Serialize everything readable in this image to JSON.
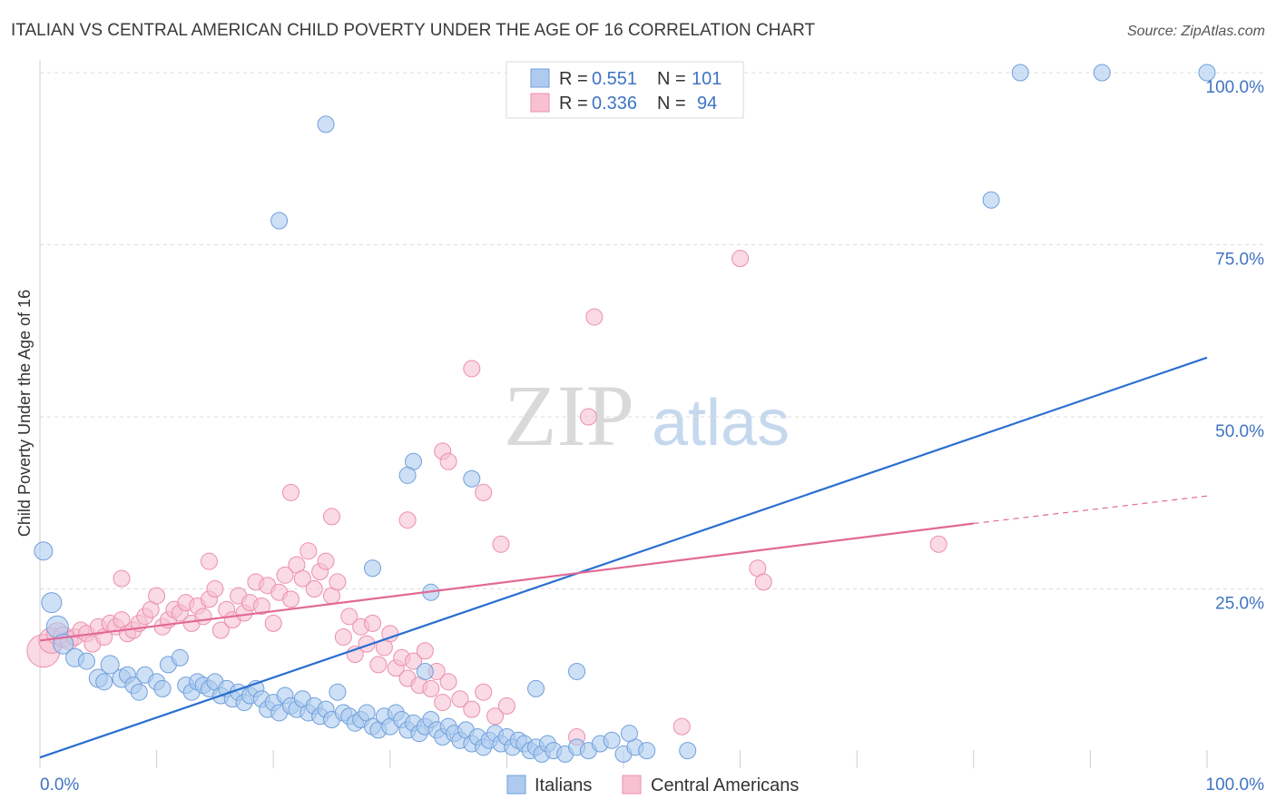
{
  "title": "ITALIAN VS CENTRAL AMERICAN CHILD POVERTY UNDER THE AGE OF 16 CORRELATION CHART",
  "source": "Source: ZipAtlas.com",
  "watermark": {
    "zip": "ZIP",
    "atlas": "atlas"
  },
  "colors": {
    "blue_fill": "#aecbef",
    "blue_stroke": "#6f9fdc",
    "blue_line": "#2a6fd1",
    "pink_fill": "#f7c1d2",
    "pink_stroke": "#ec8fab",
    "pink_line": "#e26996",
    "grid": "#dddddd",
    "axis": "#cccccc"
  },
  "legend": {
    "rows": [
      {
        "r_label": "R =",
        "r_value": "0.551",
        "n_label": "N =",
        "n_value": "101",
        "series": "blue"
      },
      {
        "r_label": "R =",
        "r_value": "0.336",
        "n_label": "N =",
        "n_value": "94",
        "series": "pink"
      }
    ]
  },
  "bottom_legend": [
    {
      "label": "Italians",
      "series": "blue"
    },
    {
      "label": "Central Americans",
      "series": "pink"
    }
  ],
  "chart_data": {
    "type": "scatter",
    "title": "ITALIAN VS CENTRAL AMERICAN CHILD POVERTY UNDER THE AGE OF 16 CORRELATION CHART",
    "xlabel": "",
    "ylabel": "Child Poverty Under the Age of 16",
    "xlim": [
      0,
      100
    ],
    "ylim": [
      0,
      100
    ],
    "x_tick_labels": [
      "0.0%",
      "100.0%"
    ],
    "y_ticks": [
      25,
      50,
      75,
      100
    ],
    "y_tick_labels": [
      "25.0%",
      "50.0%",
      "75.0%",
      "100.0%"
    ],
    "grid": true,
    "series": [
      {
        "name": "Italians",
        "color": "blue",
        "trend": {
          "x0": 0,
          "y0": 0.5,
          "x1": 100,
          "y1": 58.6
        },
        "points": [
          [
            0.3,
            30.5,
            10
          ],
          [
            1.0,
            23.0,
            11
          ],
          [
            1.5,
            19.5,
            12
          ],
          [
            2.0,
            17.0,
            11
          ],
          [
            3.0,
            15.0,
            10
          ],
          [
            4.0,
            14.5,
            9
          ],
          [
            5.0,
            12.0,
            10
          ],
          [
            5.5,
            11.5,
            9
          ],
          [
            6.0,
            14.0,
            10
          ],
          [
            7.0,
            12.0,
            10
          ],
          [
            7.5,
            12.5,
            9
          ],
          [
            8.0,
            11.0,
            9
          ],
          [
            8.5,
            10.0,
            9
          ],
          [
            9.0,
            12.5,
            9
          ],
          [
            10.0,
            11.5,
            9
          ],
          [
            10.5,
            10.5,
            9
          ],
          [
            11.0,
            14.0,
            9
          ],
          [
            12.0,
            15.0,
            9
          ],
          [
            12.5,
            11.0,
            9
          ],
          [
            13.0,
            10.0,
            9
          ],
          [
            13.5,
            11.5,
            9
          ],
          [
            14.0,
            11.0,
            9
          ],
          [
            14.5,
            10.5,
            9
          ],
          [
            15.0,
            11.5,
            9
          ],
          [
            15.5,
            9.5,
            9
          ],
          [
            16.0,
            10.5,
            9
          ],
          [
            16.5,
            9.0,
            9
          ],
          [
            17.0,
            10.0,
            9
          ],
          [
            17.5,
            8.5,
            9
          ],
          [
            18.0,
            9.5,
            9
          ],
          [
            18.5,
            10.5,
            9
          ],
          [
            19.0,
            9.0,
            9
          ],
          [
            19.5,
            7.5,
            9
          ],
          [
            20.0,
            8.5,
            9
          ],
          [
            20.5,
            7.0,
            9
          ],
          [
            21.0,
            9.5,
            9
          ],
          [
            21.5,
            8.0,
            9
          ],
          [
            22.0,
            7.5,
            9
          ],
          [
            22.5,
            9.0,
            9
          ],
          [
            23.0,
            7.0,
            9
          ],
          [
            23.5,
            8.0,
            9
          ],
          [
            24.0,
            6.5,
            9
          ],
          [
            24.5,
            7.5,
            9
          ],
          [
            25.0,
            6.0,
            9
          ],
          [
            25.5,
            10.0,
            9
          ],
          [
            26.0,
            7.0,
            9
          ],
          [
            26.5,
            6.5,
            9
          ],
          [
            27.0,
            5.5,
            9
          ],
          [
            27.5,
            6.0,
            9
          ],
          [
            28.0,
            7.0,
            9
          ],
          [
            28.5,
            5.0,
            9
          ],
          [
            29.0,
            4.5,
            9
          ],
          [
            29.5,
            6.5,
            9
          ],
          [
            30.0,
            5.0,
            9
          ],
          [
            30.5,
            7.0,
            9
          ],
          [
            31.0,
            6.0,
            9
          ],
          [
            31.5,
            4.5,
            9
          ],
          [
            32.0,
            5.5,
            9
          ],
          [
            32.5,
            4.0,
            9
          ],
          [
            33.0,
            5.0,
            9
          ],
          [
            33.5,
            6.0,
            9
          ],
          [
            34.0,
            4.5,
            9
          ],
          [
            34.5,
            3.5,
            9
          ],
          [
            35.0,
            5.0,
            9
          ],
          [
            35.5,
            4.0,
            9
          ],
          [
            36.0,
            3.0,
            9
          ],
          [
            36.5,
            4.5,
            9
          ],
          [
            37.0,
            2.5,
            9
          ],
          [
            37.5,
            3.5,
            9
          ],
          [
            38.0,
            2.0,
            9
          ],
          [
            38.5,
            3.0,
            9
          ],
          [
            39.0,
            4.0,
            9
          ],
          [
            39.5,
            2.5,
            9
          ],
          [
            40.0,
            3.5,
            9
          ],
          [
            40.5,
            2.0,
            9
          ],
          [
            41.0,
            3.0,
            9
          ],
          [
            41.5,
            2.5,
            9
          ],
          [
            42.0,
            1.5,
            9
          ],
          [
            42.5,
            2.0,
            9
          ],
          [
            43.0,
            1.0,
            9
          ],
          [
            43.5,
            2.5,
            9
          ],
          [
            44.0,
            1.5,
            9
          ],
          [
            45.0,
            1.0,
            9
          ],
          [
            46.0,
            2.0,
            9
          ],
          [
            47.0,
            1.5,
            9
          ],
          [
            48.0,
            2.5,
            9
          ],
          [
            49.0,
            3.0,
            9
          ],
          [
            50.0,
            1.0,
            9
          ],
          [
            51.0,
            2.0,
            9
          ],
          [
            52.0,
            1.5,
            9
          ],
          [
            20.5,
            78.5,
            9
          ],
          [
            24.5,
            92.5,
            9
          ],
          [
            32.0,
            43.5,
            9
          ],
          [
            31.5,
            41.5,
            9
          ],
          [
            37.0,
            41.0,
            9
          ],
          [
            28.5,
            28.0,
            9
          ],
          [
            33.5,
            24.5,
            9
          ],
          [
            33.0,
            13.0,
            9
          ],
          [
            46.0,
            13.0,
            9
          ],
          [
            42.5,
            10.5,
            9
          ],
          [
            84.0,
            100.0,
            9
          ],
          [
            91.0,
            100.0,
            9
          ],
          [
            100.0,
            100.0,
            9
          ],
          [
            81.5,
            81.5,
            9
          ],
          [
            50.5,
            4.0,
            9
          ],
          [
            55.5,
            1.5,
            9
          ]
        ]
      },
      {
        "name": "Central Americans",
        "color": "pink",
        "trend": {
          "x0": 0,
          "y0": 17.5,
          "x1": 80,
          "y1": 34.5,
          "dash_x1": 100,
          "dash_y1": 38.5
        },
        "points": [
          [
            0.3,
            16.0,
            18
          ],
          [
            1.0,
            17.5,
            14
          ],
          [
            1.5,
            18.5,
            12
          ],
          [
            2.0,
            18.0,
            11
          ],
          [
            2.5,
            17.5,
            10
          ],
          [
            3.0,
            18.0,
            9
          ],
          [
            3.5,
            19.0,
            9
          ],
          [
            4.0,
            18.5,
            9
          ],
          [
            4.5,
            17.0,
            9
          ],
          [
            5.0,
            19.5,
            9
          ],
          [
            5.5,
            18.0,
            9
          ],
          [
            6.0,
            20.0,
            9
          ],
          [
            6.5,
            19.5,
            9
          ],
          [
            7.0,
            20.5,
            9
          ],
          [
            7.5,
            18.5,
            9
          ],
          [
            8.0,
            19.0,
            9
          ],
          [
            8.5,
            20.0,
            9
          ],
          [
            9.0,
            21.0,
            9
          ],
          [
            9.5,
            22.0,
            9
          ],
          [
            10.0,
            24.0,
            9
          ],
          [
            10.5,
            19.5,
            9
          ],
          [
            11.0,
            20.5,
            9
          ],
          [
            11.5,
            22.0,
            9
          ],
          [
            12.0,
            21.5,
            9
          ],
          [
            12.5,
            23.0,
            9
          ],
          [
            13.0,
            20.0,
            9
          ],
          [
            13.5,
            22.5,
            9
          ],
          [
            14.0,
            21.0,
            9
          ],
          [
            14.5,
            23.5,
            9
          ],
          [
            15.0,
            25.0,
            9
          ],
          [
            15.5,
            19.0,
            9
          ],
          [
            16.0,
            22.0,
            9
          ],
          [
            16.5,
            20.5,
            9
          ],
          [
            17.0,
            24.0,
            9
          ],
          [
            17.5,
            21.5,
            9
          ],
          [
            18.0,
            23.0,
            9
          ],
          [
            18.5,
            26.0,
            9
          ],
          [
            19.0,
            22.5,
            9
          ],
          [
            19.5,
            25.5,
            9
          ],
          [
            20.0,
            20.0,
            9
          ],
          [
            20.5,
            24.5,
            9
          ],
          [
            21.0,
            27.0,
            9
          ],
          [
            21.5,
            23.5,
            9
          ],
          [
            22.0,
            28.5,
            9
          ],
          [
            22.5,
            26.5,
            9
          ],
          [
            23.0,
            30.5,
            9
          ],
          [
            23.5,
            25.0,
            9
          ],
          [
            24.0,
            27.5,
            9
          ],
          [
            24.5,
            29.0,
            9
          ],
          [
            25.0,
            24.0,
            9
          ],
          [
            25.5,
            26.0,
            9
          ],
          [
            26.0,
            18.0,
            9
          ],
          [
            26.5,
            21.0,
            9
          ],
          [
            27.0,
            15.5,
            9
          ],
          [
            27.5,
            19.5,
            9
          ],
          [
            28.0,
            17.0,
            9
          ],
          [
            28.5,
            20.0,
            9
          ],
          [
            29.0,
            14.0,
            9
          ],
          [
            29.5,
            16.5,
            9
          ],
          [
            30.0,
            18.5,
            9
          ],
          [
            30.5,
            13.5,
            9
          ],
          [
            31.0,
            15.0,
            9
          ],
          [
            31.5,
            12.0,
            9
          ],
          [
            32.0,
            14.5,
            9
          ],
          [
            32.5,
            11.0,
            9
          ],
          [
            33.0,
            16.0,
            9
          ],
          [
            33.5,
            10.5,
            9
          ],
          [
            34.0,
            13.0,
            9
          ],
          [
            34.5,
            8.5,
            9
          ],
          [
            35.0,
            11.5,
            9
          ],
          [
            36.0,
            9.0,
            9
          ],
          [
            37.0,
            7.5,
            9
          ],
          [
            38.0,
            10.0,
            9
          ],
          [
            39.0,
            6.5,
            9
          ],
          [
            40.0,
            8.0,
            9
          ],
          [
            7.0,
            26.5,
            9
          ],
          [
            14.5,
            29.0,
            9
          ],
          [
            21.5,
            39.0,
            9
          ],
          [
            25.0,
            35.5,
            9
          ],
          [
            31.5,
            35.0,
            9
          ],
          [
            34.5,
            45.0,
            9
          ],
          [
            35.0,
            43.5,
            9
          ],
          [
            37.0,
            57.0,
            9
          ],
          [
            38.0,
            39.0,
            9
          ],
          [
            39.5,
            31.5,
            9
          ],
          [
            47.0,
            50.0,
            9
          ],
          [
            47.5,
            64.5,
            9
          ],
          [
            60.0,
            73.0,
            9
          ],
          [
            61.5,
            28.0,
            9
          ],
          [
            62.0,
            26.0,
            9
          ],
          [
            77.0,
            31.5,
            9
          ],
          [
            55.0,
            5.0,
            9
          ],
          [
            46.0,
            3.5,
            9
          ]
        ]
      }
    ]
  }
}
